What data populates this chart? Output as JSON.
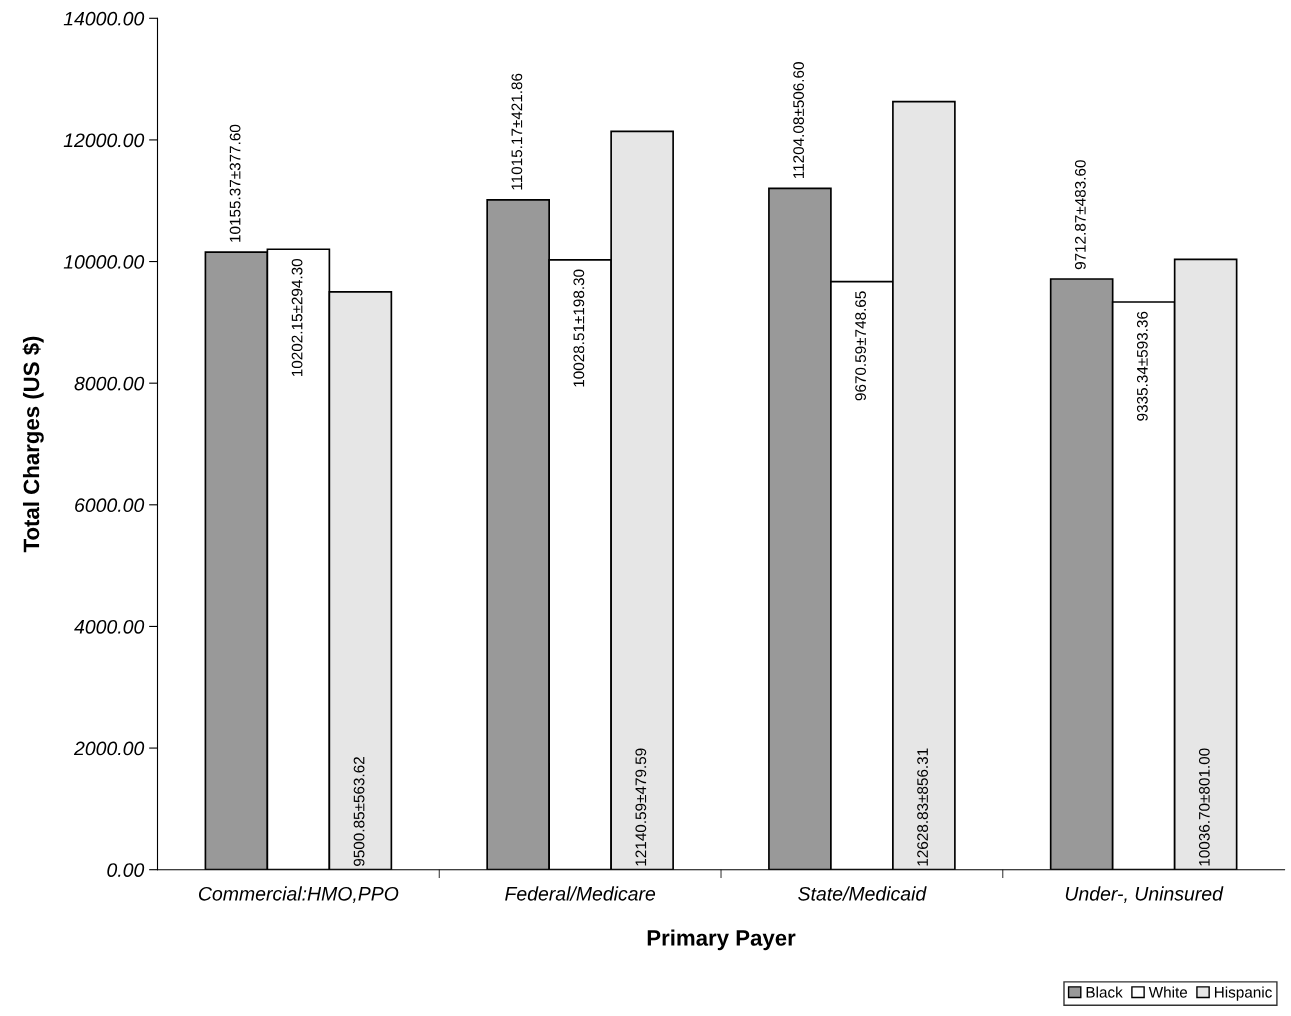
{
  "chart_data": {
    "type": "bar",
    "xlabel": "Primary Payer",
    "ylabel": "Total Charges (US $)",
    "categories": [
      "Commercial:HMO,PPO",
      "Federal/Medicare",
      "State/Medicaid",
      "Under-, Uninsured"
    ],
    "series": [
      {
        "name": "Black",
        "color": "#999999",
        "values": [
          10155.37,
          11015.17,
          11204.08,
          9712.87
        ],
        "value_labels": [
          "10155.37±377.60",
          "11015.17±421.86",
          "11204.08±506.60",
          "9712.87±483.60"
        ]
      },
      {
        "name": "White",
        "color": "#ffffff",
        "values": [
          10202.15,
          10028.51,
          9670.59,
          9335.34
        ],
        "value_labels": [
          "10202.15±294.30",
          "10028.51±198.30",
          "9670.59±748.65",
          "9335.34±593.36"
        ]
      },
      {
        "name": "Hispanic",
        "color": "#e6e6e6",
        "values": [
          9500.85,
          12140.59,
          12628.83,
          10036.7
        ],
        "value_labels": [
          "9500.85±563.62",
          "12140.59±479.59",
          "12628.83±856.31",
          "10036.70±801.00"
        ]
      }
    ],
    "ylim": [
      0,
      14000
    ],
    "yticks": [
      {
        "value": 0,
        "label": "0.00"
      },
      {
        "value": 2000,
        "label": "2000.00"
      },
      {
        "value": 4000,
        "label": "4000.00"
      },
      {
        "value": 6000,
        "label": "6000.00"
      },
      {
        "value": 8000,
        "label": "8000.00"
      },
      {
        "value": 10000,
        "label": "10000.00"
      },
      {
        "value": 12000,
        "label": "12000.00"
      },
      {
        "value": 14000,
        "label": "14000.00"
      }
    ],
    "grid": false,
    "legend": "bottom right"
  }
}
